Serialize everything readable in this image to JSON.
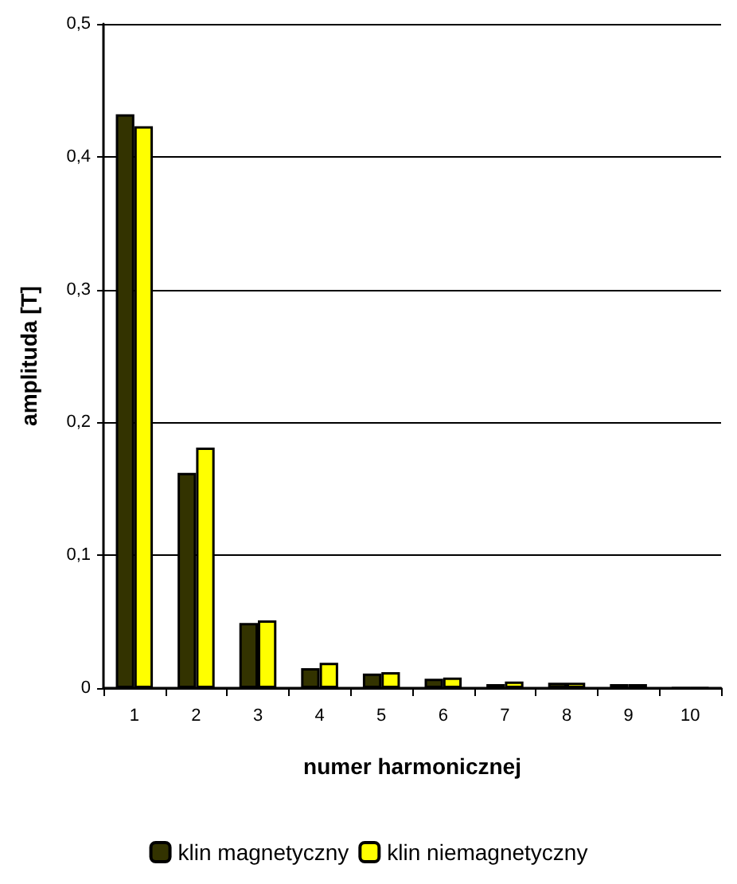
{
  "chart_data": {
    "type": "bar",
    "xlabel": "numer harmonicznej",
    "ylabel": "amplituda [T]",
    "categories": [
      "1",
      "2",
      "3",
      "4",
      "5",
      "6",
      "7",
      "8",
      "9",
      "10"
    ],
    "series": [
      {
        "name": "klin magnetyczny",
        "color": "#333300",
        "values": [
          0.432,
          0.162,
          0.049,
          0.015,
          0.011,
          0.007,
          0.003,
          0.004,
          0.003,
          0
        ]
      },
      {
        "name": "klin niemagnetyczny",
        "color": "#ffff00",
        "values": [
          0.423,
          0.181,
          0.051,
          0.019,
          0.012,
          0.008,
          0.005,
          0.004,
          0.003,
          0
        ]
      }
    ],
    "ylim": [
      0,
      0.5
    ],
    "yticks": [
      {
        "value": 0,
        "label": "0"
      },
      {
        "value": 0.1,
        "label": "0,1"
      },
      {
        "value": 0.2,
        "label": "0,2"
      },
      {
        "value": 0.3,
        "label": "0,3"
      },
      {
        "value": 0.4,
        "label": "0,4"
      },
      {
        "value": 0.5,
        "label": "0,5"
      }
    ],
    "grid": "y",
    "legend": "bottom"
  }
}
